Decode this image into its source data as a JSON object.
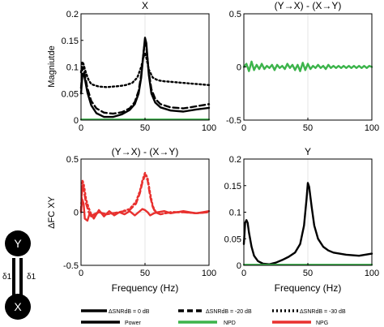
{
  "figure": {
    "xlabel": "Frequency (Hz)",
    "ylabel_top": "Magniutde",
    "ylabel_bottom": "ΔFC XY",
    "diagram": {
      "node_top": "Y",
      "node_bottom": "X",
      "delta_left": "δ1",
      "delta_right": "δ1"
    },
    "legend": {
      "styles": [
        {
          "label": "ΔSNRdB = 0 dB",
          "dash": "solid"
        },
        {
          "label": "ΔSNRdB = -20 dB",
          "dash": "dashed"
        },
        {
          "label": "ΔSNRdB = -30 dB",
          "dash": "dotted"
        }
      ],
      "colors": [
        {
          "label": "Power",
          "color": "#000000"
        },
        {
          "label": "NPD",
          "color": "#3cb44b"
        },
        {
          "label": "NPG",
          "color": "#e8312f"
        }
      ]
    },
    "colors": {
      "power": "#000000",
      "npd": "#3cb44b",
      "npg": "#e8312f"
    }
  },
  "chart_data": [
    {
      "type": "line",
      "title": "X",
      "xlim": [
        0,
        100
      ],
      "ylim": [
        0,
        0.2
      ],
      "xticks": [
        0,
        50,
        100
      ],
      "yticks": [
        0,
        0.05,
        0.1,
        0.15,
        0.2
      ],
      "ytick_labels": [
        "0",
        "0.05",
        "0.1",
        "0.15",
        "0.2"
      ],
      "series": [
        {
          "color": "#000000",
          "dash": "solid",
          "x": [
            0,
            1,
            2,
            3,
            5,
            8,
            12,
            18,
            25,
            32,
            38,
            42,
            45,
            47,
            49,
            50,
            51,
            53,
            55,
            58,
            62,
            70,
            80,
            90,
            100
          ],
          "y": [
            0.05,
            0.082,
            0.088,
            0.078,
            0.052,
            0.028,
            0.013,
            0.006,
            0.006,
            0.011,
            0.019,
            0.03,
            0.05,
            0.08,
            0.13,
            0.155,
            0.145,
            0.085,
            0.05,
            0.033,
            0.024,
            0.018,
            0.016,
            0.02,
            0.023
          ]
        },
        {
          "color": "#000000",
          "dash": "dashed",
          "x": [
            0,
            1,
            2,
            3,
            5,
            8,
            12,
            18,
            25,
            32,
            38,
            42,
            45,
            47,
            49,
            50,
            51,
            53,
            55,
            58,
            62,
            70,
            80,
            90,
            100
          ],
          "y": [
            0.06,
            0.095,
            0.1,
            0.085,
            0.06,
            0.036,
            0.022,
            0.014,
            0.012,
            0.015,
            0.022,
            0.034,
            0.055,
            0.085,
            0.13,
            0.148,
            0.138,
            0.09,
            0.058,
            0.04,
            0.03,
            0.024,
            0.022,
            0.026,
            0.03
          ]
        },
        {
          "color": "#000000",
          "dash": "dotted",
          "x": [
            0,
            1,
            2,
            3,
            4,
            6,
            8,
            10,
            14,
            20,
            25,
            30,
            35,
            40,
            44,
            47,
            49,
            50,
            51,
            53,
            56,
            60,
            65,
            70,
            80,
            90,
            100
          ],
          "y": [
            0.09,
            0.11,
            0.105,
            0.096,
            0.088,
            0.075,
            0.068,
            0.066,
            0.063,
            0.062,
            0.063,
            0.064,
            0.066,
            0.07,
            0.08,
            0.1,
            0.12,
            0.125,
            0.118,
            0.095,
            0.08,
            0.075,
            0.073,
            0.072,
            0.07,
            0.068,
            0.066
          ]
        },
        {
          "color": "#3cb44b",
          "dash": "solid",
          "x": [
            0,
            100
          ],
          "y": [
            0.001,
            0.001
          ]
        }
      ]
    },
    {
      "type": "line",
      "title": "(Y→X) - (X→Y)",
      "xlim": [
        0,
        100
      ],
      "ylim": [
        -0.5,
        0.5
      ],
      "xticks": [
        0,
        50,
        100
      ],
      "yticks": [
        -0.5,
        0,
        0.5
      ],
      "ytick_labels": [
        "-0.5",
        "0",
        "0.5"
      ],
      "series": [
        {
          "color": "#3cb44b",
          "dash": "solid",
          "x": [
            0,
            2,
            4,
            6,
            8,
            10,
            12,
            14,
            16,
            18,
            20,
            22,
            24,
            26,
            28,
            30,
            32,
            34,
            36,
            38,
            40,
            42,
            44,
            46,
            48,
            50,
            52,
            54,
            56,
            58,
            60,
            62,
            64,
            66,
            68,
            70,
            72,
            74,
            76,
            78,
            80,
            82,
            84,
            86,
            88,
            90,
            92,
            94,
            96,
            98,
            100
          ],
          "y": [
            0,
            0.03,
            -0.04,
            0.05,
            -0.03,
            0.02,
            -0.02,
            0.03,
            -0.02,
            0.01,
            -0.01,
            0.02,
            -0.03,
            0.02,
            -0.01,
            0.01,
            -0.02,
            0.03,
            -0.01,
            0.02,
            -0.03,
            0.02,
            -0.04,
            0.04,
            -0.03,
            0.03,
            -0.02,
            0.01,
            -0.01,
            0.02,
            -0.01,
            0.01,
            -0.02,
            0.02,
            -0.01,
            0.01,
            -0.01,
            0.01,
            -0.01,
            0.01,
            -0.01,
            0.01,
            -0.01,
            0.01,
            -0.01,
            0.01,
            -0.01,
            0.01,
            -0.01,
            0.01,
            0
          ]
        }
      ]
    },
    {
      "type": "line",
      "title": "(Y→X) - (X→Y)",
      "xlim": [
        0,
        100
      ],
      "ylim": [
        -0.5,
        0.5
      ],
      "xticks": [
        0,
        50,
        100
      ],
      "yticks": [
        -0.5,
        0,
        0.5
      ],
      "ytick_labels": [
        "-0.5",
        "0",
        "0.5"
      ],
      "series": [
        {
          "color": "#e8312f",
          "dash": "solid",
          "x": [
            0,
            1,
            2,
            3,
            5,
            7,
            10,
            14,
            18,
            22,
            26,
            30,
            34,
            38,
            42,
            45,
            48,
            50,
            52,
            54,
            57,
            60,
            65,
            70,
            75,
            80,
            85,
            90,
            95,
            100
          ],
          "y": [
            0.02,
            0.12,
            0.08,
            -0.06,
            -0.08,
            0.0,
            -0.06,
            0.02,
            -0.04,
            0.01,
            -0.03,
            0.0,
            -0.02,
            0.01,
            -0.03,
            0.0,
            0.03,
            0.02,
            0.0,
            -0.03,
            -0.01,
            0.0,
            0.01,
            -0.01,
            0.0,
            0.01,
            0.0,
            -0.01,
            0.0,
            0.01
          ]
        },
        {
          "color": "#e8312f",
          "dash": "dashed",
          "x": [
            0,
            1,
            2,
            3,
            4,
            6,
            8,
            10,
            14,
            20,
            30,
            38,
            43,
            46,
            48,
            50,
            52,
            54,
            56,
            58,
            62,
            70,
            80,
            90,
            100
          ],
          "y": [
            0.0,
            0.25,
            0.22,
            0.15,
            0.08,
            0.0,
            -0.04,
            -0.02,
            0.0,
            -0.02,
            0.0,
            0.02,
            0.08,
            0.18,
            0.28,
            0.35,
            0.3,
            0.15,
            0.05,
            0.0,
            -0.02,
            0.0,
            0.0,
            -0.01,
            0.0
          ]
        },
        {
          "color": "#e8312f",
          "dash": "dotted",
          "x": [
            0,
            1,
            2,
            3,
            4,
            6,
            8,
            10,
            14,
            20,
            30,
            38,
            43,
            46,
            48,
            50,
            52,
            54,
            56,
            58,
            62,
            70,
            80,
            90,
            100
          ],
          "y": [
            0.0,
            0.3,
            0.27,
            0.2,
            0.12,
            0.04,
            -0.02,
            -0.03,
            0.0,
            -0.02,
            0.0,
            0.03,
            0.1,
            0.2,
            0.3,
            0.37,
            0.32,
            0.18,
            0.06,
            0.01,
            -0.02,
            0.0,
            0.0,
            -0.01,
            0.0
          ]
        }
      ]
    },
    {
      "type": "line",
      "title": "Y",
      "xlim": [
        0,
        100
      ],
      "ylim": [
        0,
        0.2
      ],
      "xticks": [
        0,
        50,
        100
      ],
      "yticks": [
        0,
        0.05,
        0.1,
        0.15,
        0.2
      ],
      "ytick_labels": [
        "0",
        "0.05",
        "0.1",
        "0.15",
        "0.2"
      ],
      "series": [
        {
          "color": "#000000",
          "dash": "solid",
          "x": [
            0,
            1,
            2,
            3,
            4,
            6,
            8,
            11,
            15,
            20,
            25,
            30,
            35,
            40,
            44,
            47,
            49,
            50,
            51,
            53,
            55,
            58,
            62,
            66,
            70,
            80,
            90,
            100
          ],
          "y": [
            0.04,
            0.08,
            0.085,
            0.08,
            0.062,
            0.035,
            0.018,
            0.008,
            0.003,
            0.002,
            0.005,
            0.01,
            0.016,
            0.024,
            0.04,
            0.075,
            0.125,
            0.155,
            0.148,
            0.11,
            0.075,
            0.05,
            0.035,
            0.028,
            0.024,
            0.02,
            0.018,
            0.022
          ]
        },
        {
          "color": "#3cb44b",
          "dash": "solid",
          "x": [
            0,
            100
          ],
          "y": [
            0.001,
            0.001
          ]
        }
      ]
    }
  ]
}
